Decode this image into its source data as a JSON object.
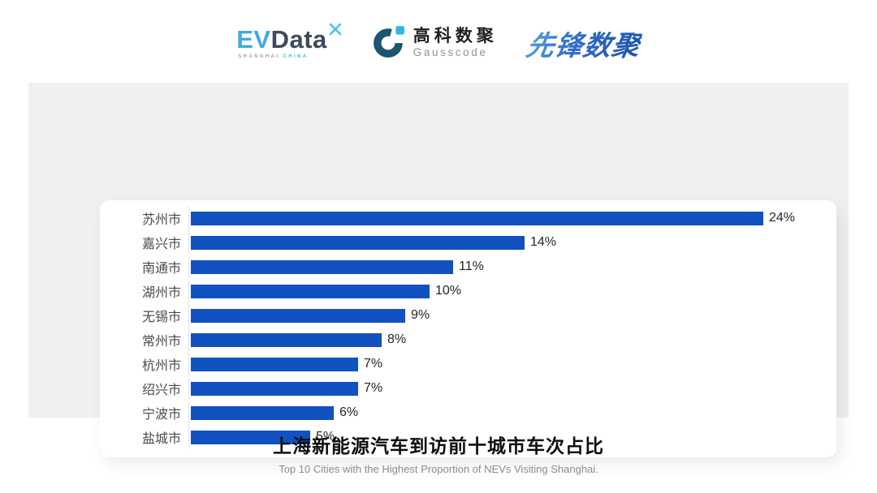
{
  "header": {
    "evdata": {
      "ev": "EV",
      "data": "Data",
      "sub_left": "SHANGHAI",
      "sub_right": "CHINA",
      "spark_color": "#3EC6EC"
    },
    "gausscode": {
      "cn": "高科数聚",
      "en": "Gausscode",
      "mark_color": "#1A5571",
      "mark_accent": "#2BB7E9"
    },
    "xianfeng": {
      "text": "先锋数聚",
      "color_start": "#4FA0E2",
      "color_end": "#2157B2"
    }
  },
  "chart_data": {
    "type": "bar",
    "orientation": "horizontal",
    "title": "上海新能源汽车到访前十城市车次占比",
    "subtitle": "Top 10 Cities with the Highest Proportion of  NEVs Visiting Shanghai.",
    "categories": [
      "苏州市",
      "嘉兴市",
      "南通市",
      "湖州市",
      "无锡市",
      "常州市",
      "杭州市",
      "绍兴市",
      "宁波市",
      "盐城市"
    ],
    "values": [
      24,
      14,
      11,
      10,
      9,
      8,
      7,
      7,
      6,
      5
    ],
    "value_labels": [
      "24%",
      "14%",
      "11%",
      "10%",
      "9%",
      "8%",
      "7%",
      "7%",
      "6%",
      "5%"
    ],
    "xlim": [
      0,
      24
    ],
    "bar_color": "#1151C0",
    "axis_line_color": "#E4E4E4",
    "grid": false,
    "legend": false
  }
}
